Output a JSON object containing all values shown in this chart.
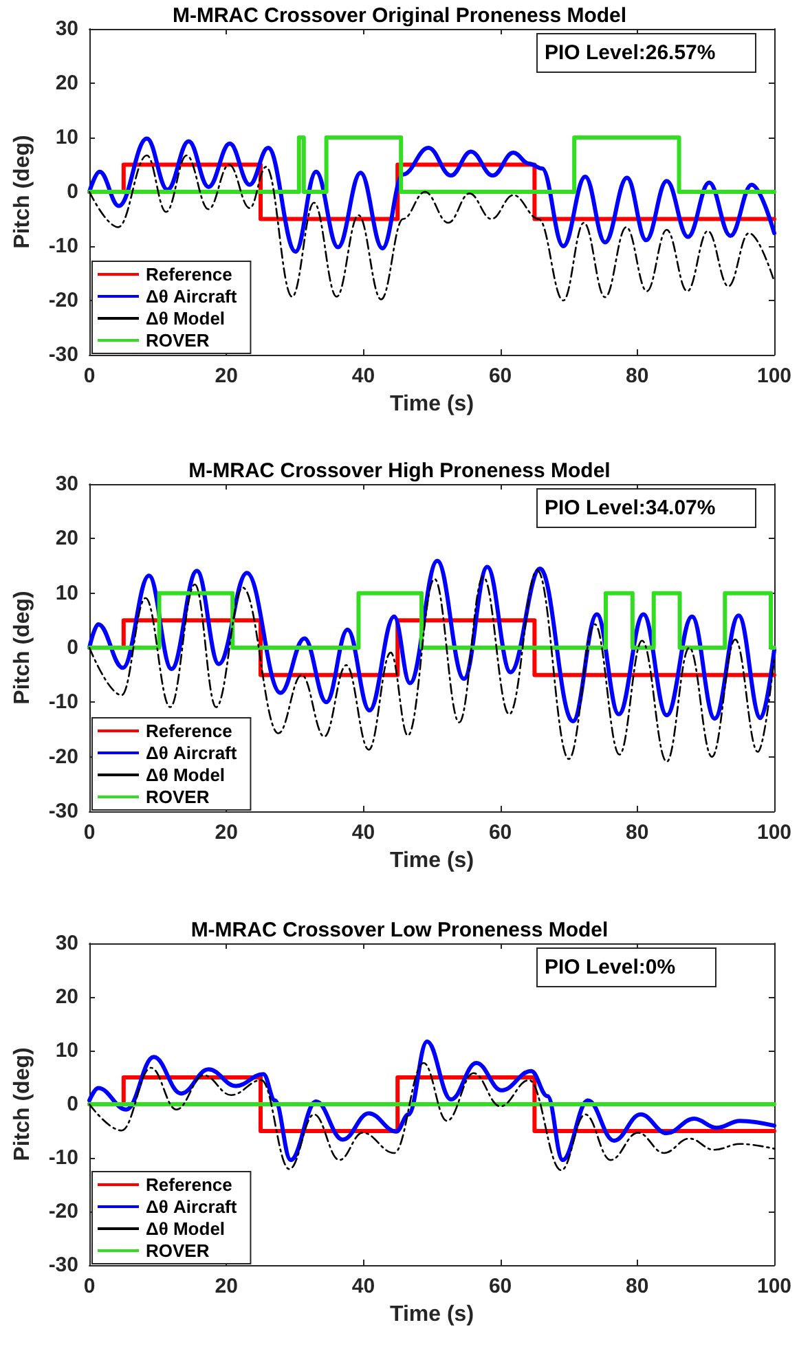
{
  "chart_data": [
    {
      "type": "line",
      "title": "M-MRAC Crossover Original Proneness Model",
      "xlabel": "Time (s)",
      "ylabel": "Pitch (deg)",
      "annotations": [
        "PIO Level:26.57%"
      ],
      "xlim": [
        0,
        100
      ],
      "xticks": [
        0,
        20,
        40,
        60,
        80,
        100
      ],
      "ylim": [
        -30,
        30
      ],
      "yticks": [
        -30,
        -20,
        -10,
        0,
        10,
        20,
        30
      ],
      "grid": false,
      "legend": "bottom left",
      "marker": "none",
      "series": [
        {
          "name": "Reference",
          "type": "step",
          "color": "#ff0000",
          "x": [
            0,
            5,
            25,
            45,
            65,
            100
          ],
          "values": [
            0,
            5,
            -5,
            5,
            -5,
            -5
          ]
        },
        {
          "name": "Δθ Aircraft",
          "color": "#0000ff",
          "x": [
            0,
            1.5,
            4.3,
            8.4,
            11.4,
            14.5,
            17.4,
            20.5,
            23.4,
            26.1,
            30.1,
            33.1,
            36.3,
            39.6,
            42.8,
            45.8,
            49.5,
            52.8,
            55.7,
            58.9,
            61.9,
            64.2,
            66.1,
            69.2,
            72.4,
            75.3,
            78.5,
            81.3,
            84.3,
            87.4,
            90.5,
            93.6,
            96.7,
            100
          ],
          "values": [
            0,
            3.7,
            -2.6,
            9.8,
            0.4,
            9.3,
            0.9,
            8.9,
            1.3,
            8.1,
            -11,
            3.7,
            -10.2,
            3.5,
            -10.4,
            3.2,
            8.1,
            3,
            7.4,
            3,
            7.2,
            5.2,
            4.3,
            -10,
            2.8,
            -9.3,
            2.6,
            -8.9,
            2,
            -8.3,
            1.7,
            -8.1,
            1.3,
            -7.6
          ]
        },
        {
          "name": "Δθ Model",
          "color": "#000000",
          "line_style": "dashed",
          "x": [
            0,
            4.2,
            8.4,
            11.2,
            14.2,
            17.4,
            20.4,
            23.4,
            25.8,
            29.6,
            32.8,
            36.1,
            39.3,
            42.6,
            45.8,
            49,
            52.4,
            55.5,
            58.7,
            61.9,
            65.6,
            69.2,
            72.2,
            75.3,
            78.4,
            81.4,
            84.3,
            87.3,
            90.3,
            93.3,
            96.3,
            100
          ],
          "values": [
            0,
            -6.5,
            6.7,
            -3.7,
            6.7,
            -3.2,
            5,
            -3,
            4.6,
            -19.3,
            -2,
            -19.3,
            -4.3,
            -19.8,
            -5,
            0,
            -5.7,
            -0.3,
            -5,
            -0.6,
            -5,
            -20,
            -5.7,
            -19.4,
            -6.5,
            -18.3,
            -7,
            -18.3,
            -7.2,
            -17.4,
            -7.6,
            -16.5
          ]
        },
        {
          "name": "ROVER",
          "type": "step",
          "color": "#33dd22",
          "x": [
            0,
            30.6,
            31.3,
            34.6,
            45.5,
            70.8,
            86.1,
            100
          ],
          "values": [
            0,
            10,
            0,
            10,
            0,
            10,
            0,
            0
          ]
        }
      ]
    },
    {
      "type": "line",
      "title": "M-MRAC Crossover High Proneness Model",
      "xlabel": "Time (s)",
      "ylabel": "Pitch (deg)",
      "annotations": [
        "PIO Level:34.07%"
      ],
      "xlim": [
        0,
        100
      ],
      "xticks": [
        0,
        20,
        40,
        60,
        80,
        100
      ],
      "ylim": [
        -30,
        30
      ],
      "yticks": [
        -30,
        -20,
        -10,
        0,
        10,
        20,
        30
      ],
      "grid": false,
      "legend": "bottom left",
      "marker": "none",
      "series": [
        {
          "name": "Reference",
          "type": "step",
          "color": "#ff0000",
          "x": [
            0,
            5,
            25,
            45,
            65,
            100
          ],
          "values": [
            0,
            5,
            -5,
            5,
            -5,
            -5
          ]
        },
        {
          "name": "Δθ Aircraft",
          "color": "#0000ff",
          "x": [
            0,
            1.3,
            4.9,
            8.7,
            12,
            15.7,
            18.9,
            23,
            27.9,
            31.4,
            34.6,
            37.7,
            40.9,
            44.5,
            46.8,
            50.8,
            54.7,
            58.1,
            61.5,
            65.8,
            70.6,
            74.1,
            77.3,
            80.9,
            84.3,
            88,
            91.3,
            94.8,
            98,
            100
          ],
          "values": [
            0,
            4.3,
            -3.7,
            13.2,
            -3.9,
            14.1,
            -3,
            13.7,
            -8.3,
            1.7,
            -10,
            3.3,
            -11.5,
            5.7,
            -6.5,
            15.9,
            -5.7,
            14.8,
            -4.5,
            14.5,
            -13.5,
            6.1,
            -12.2,
            6.1,
            -12.4,
            5.7,
            -13,
            5.9,
            -12.9,
            -0.4
          ]
        },
        {
          "name": "Δθ Model",
          "color": "#000000",
          "line_style": "dashed",
          "x": [
            0,
            4.7,
            8.2,
            11.8,
            15.4,
            18.5,
            22.4,
            27.6,
            31,
            34.3,
            37.5,
            40.8,
            44,
            46.5,
            50.4,
            54,
            57.5,
            61.3,
            65.4,
            70,
            73.8,
            77.4,
            80.7,
            84.3,
            87.6,
            90.9,
            94.3,
            97.6,
            100
          ],
          "values": [
            0,
            -8.7,
            9.1,
            -10.9,
            11.6,
            -10.9,
            11,
            -15.7,
            -5,
            -16.3,
            -3.2,
            -18.7,
            -0.9,
            -16.1,
            12.6,
            -13.7,
            13,
            -12.2,
            14.2,
            -20.4,
            4.3,
            -19.6,
            1.3,
            -20.9,
            0,
            -20,
            1.5,
            -19.1,
            -1.7
          ]
        },
        {
          "name": "ROVER",
          "type": "step",
          "color": "#33dd22",
          "x": [
            0,
            10.2,
            20.9,
            39.3,
            48.5,
            75.4,
            79.3,
            82.4,
            86.2,
            92.8,
            99.5,
            100
          ],
          "values": [
            0,
            10,
            0,
            10,
            0,
            10,
            0,
            10,
            0,
            10,
            0,
            0
          ]
        }
      ]
    },
    {
      "type": "line",
      "title": "M-MRAC Crossover Low Proneness Model",
      "xlabel": "Time (s)",
      "ylabel": "Pitch (deg)",
      "annotations": [
        "PIO Level:0%"
      ],
      "xlim": [
        0,
        100
      ],
      "xticks": [
        0,
        20,
        40,
        60,
        80,
        100
      ],
      "ylim": [
        -30,
        30
      ],
      "yticks": [
        -30,
        -20,
        -10,
        0,
        10,
        20,
        30
      ],
      "grid": false,
      "legend": "bottom left",
      "marker": "none",
      "series": [
        {
          "name": "Reference",
          "type": "step",
          "color": "#ff0000",
          "x": [
            0,
            5,
            25,
            45,
            65,
            100
          ],
          "values": [
            0,
            5,
            -5,
            5,
            -5,
            -5
          ]
        },
        {
          "name": "Δθ Aircraft",
          "color": "#0000ff",
          "x": [
            0,
            1.3,
            5.4,
            9.4,
            13.4,
            17.4,
            21.4,
            25.4,
            27.1,
            29.4,
            33.1,
            37,
            40.8,
            44.8,
            46.6,
            49.3,
            52.8,
            56.5,
            60.2,
            64.5,
            66.9,
            69.1,
            72.8,
            76.6,
            80.5,
            84.3,
            88.3,
            91.6,
            95,
            100
          ],
          "values": [
            0.7,
            3,
            -1,
            8.8,
            2,
            6.5,
            3.4,
            5.6,
            0.7,
            -10.4,
            0.5,
            -6.6,
            -1.7,
            -5.1,
            -1.9,
            11.7,
            0.9,
            7.7,
            2.6,
            6.2,
            1.5,
            -10.4,
            0.7,
            -6.8,
            -1.9,
            -5.4,
            -2.7,
            -4.4,
            -3.1,
            -4
          ]
        },
        {
          "name": "Δθ Model",
          "color": "#000000",
          "line_style": "dashed",
          "x": [
            0,
            4.7,
            9,
            12.7,
            16.7,
            20.7,
            25.1,
            29.2,
            32.8,
            36.5,
            39.9,
            44.5,
            48.8,
            52.2,
            56.1,
            60,
            64.2,
            68.9,
            72.4,
            76.1,
            80.1,
            83.9,
            87.6,
            91.2,
            95,
            100
          ],
          "values": [
            0,
            -4.9,
            6.8,
            -1,
            5.4,
            1.7,
            4.5,
            -12.1,
            -1.9,
            -10.4,
            -5.3,
            -9.1,
            7.7,
            -3.1,
            5.8,
            -0.4,
            4.5,
            -12.3,
            -1.9,
            -10.4,
            -5.3,
            -9.1,
            -6.4,
            -8.5,
            -7.4,
            -8.3
          ]
        },
        {
          "name": "ROVER",
          "type": "step",
          "color": "#33dd22",
          "x": [
            0,
            100
          ],
          "values": [
            0,
            0
          ]
        }
      ]
    }
  ]
}
